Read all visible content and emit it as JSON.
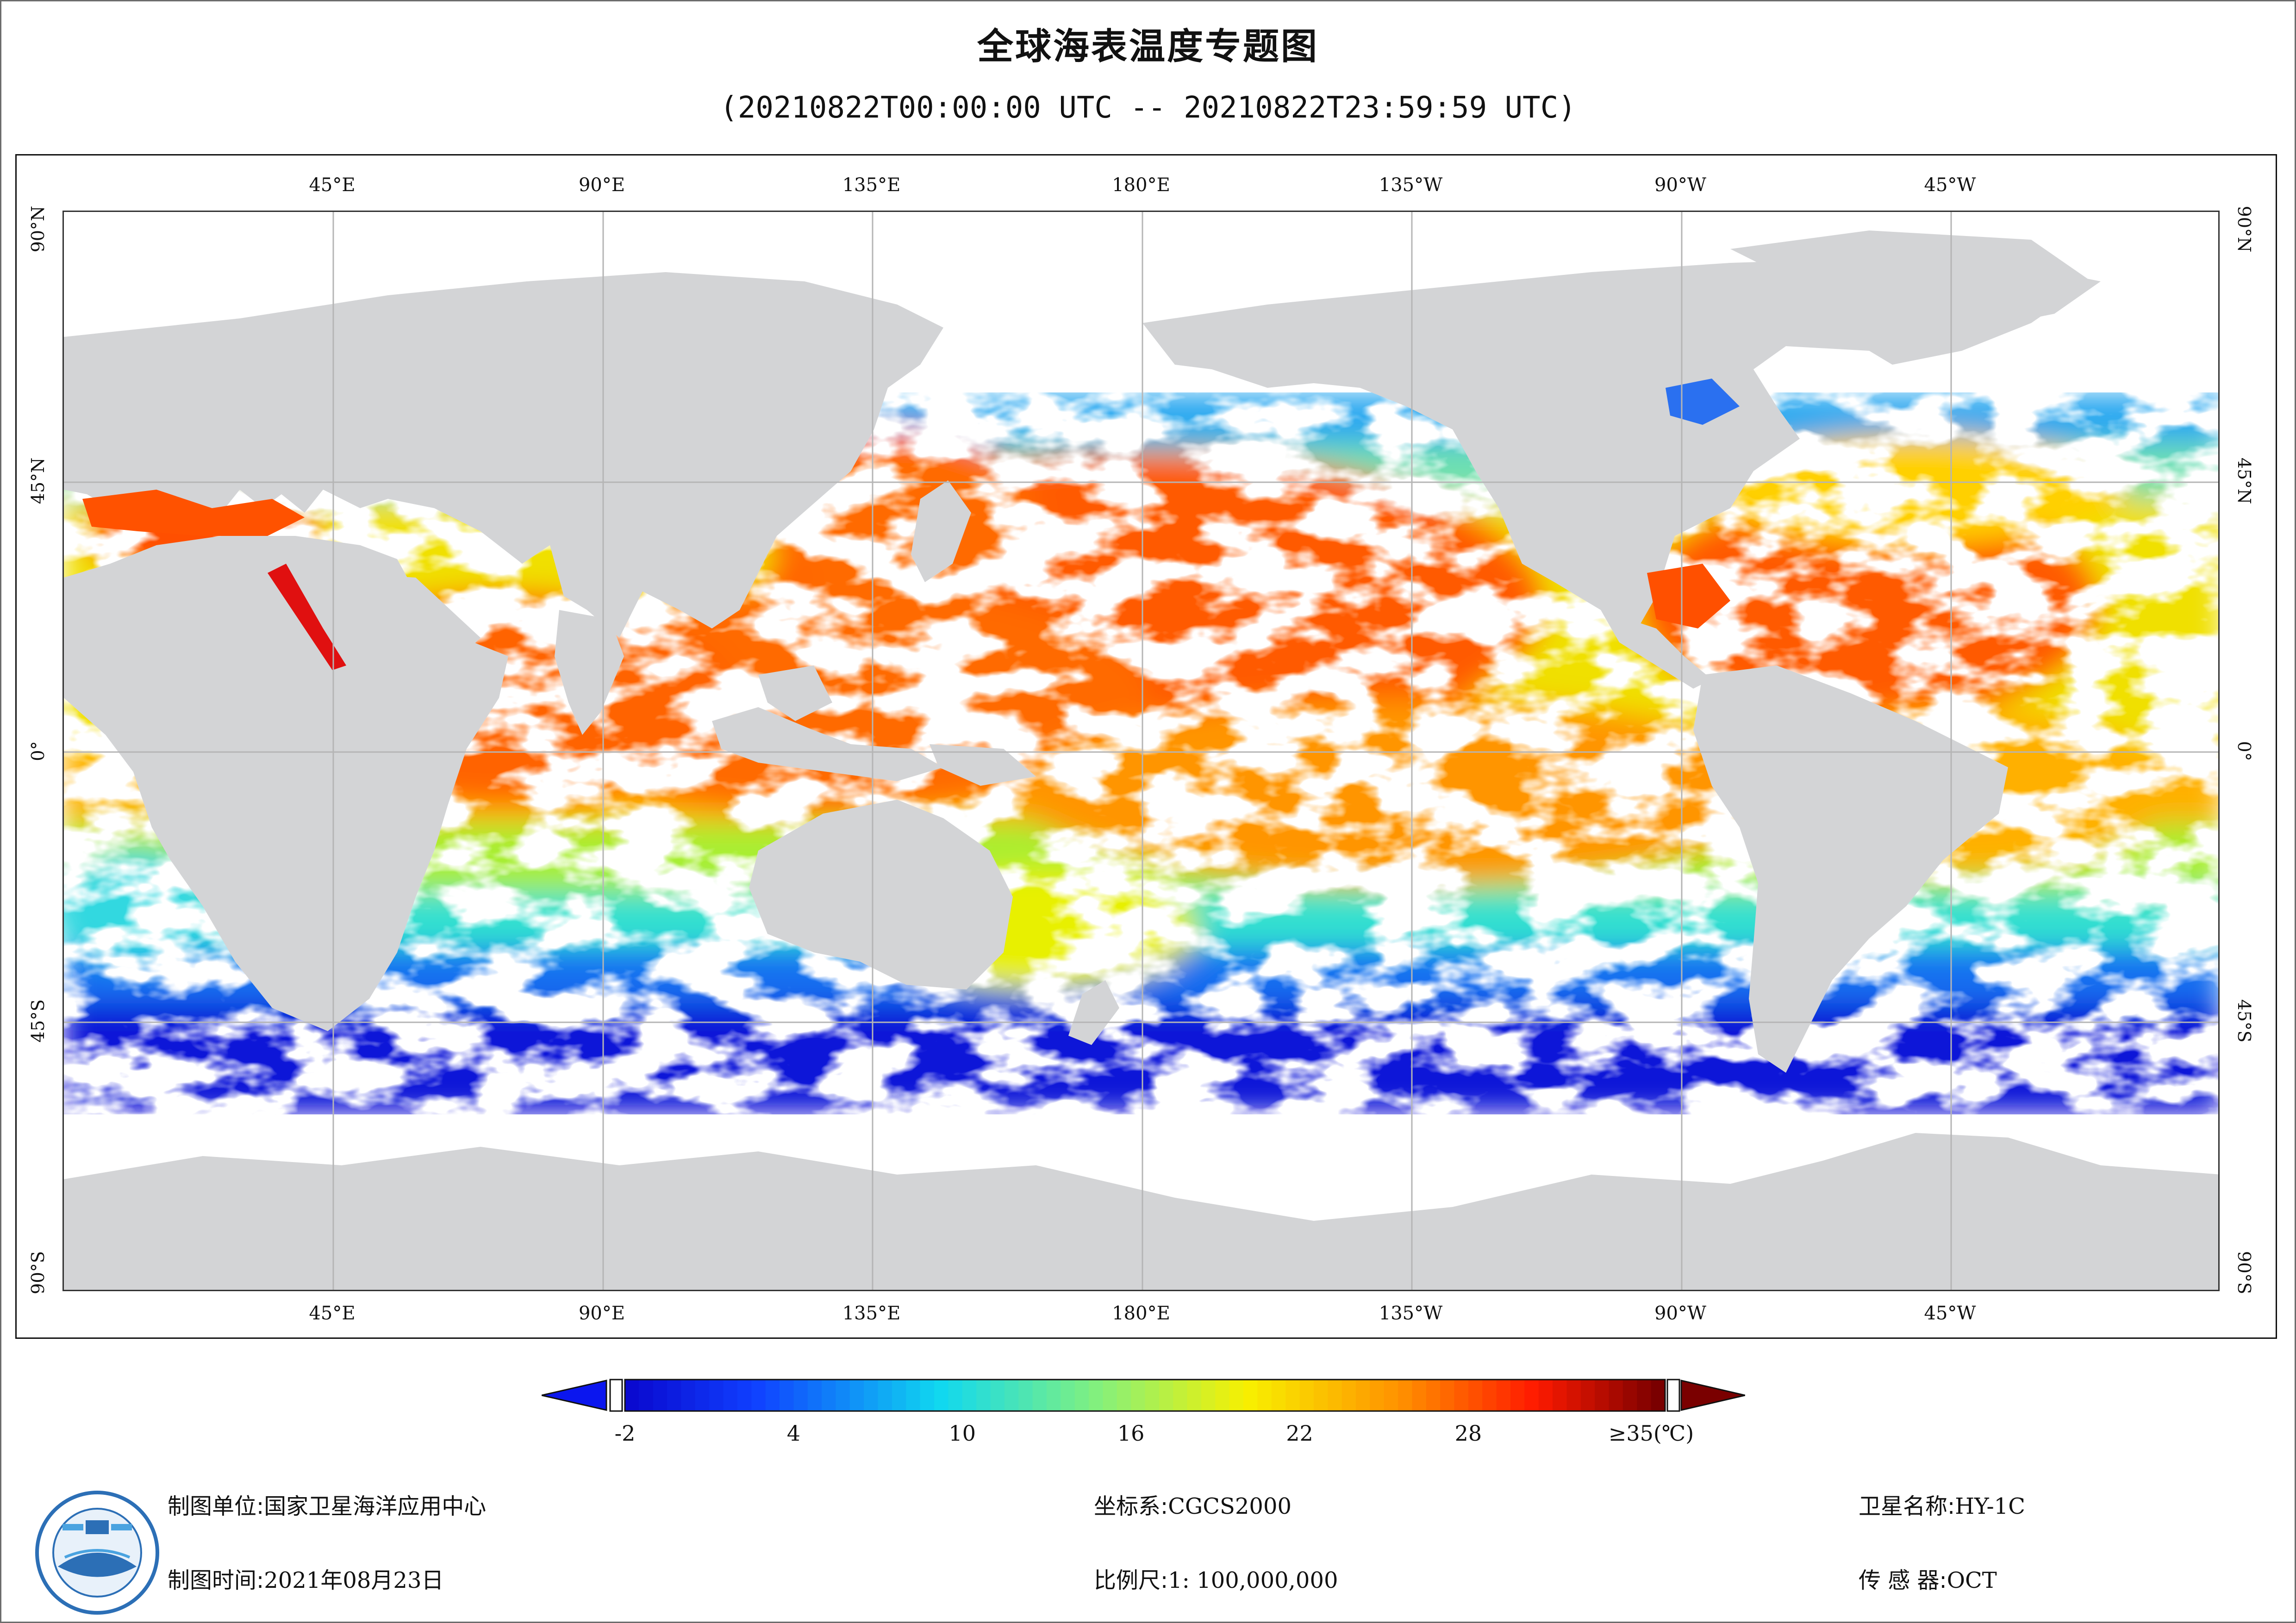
{
  "header": {
    "title": "全球海表温度专题图",
    "subtitle": "(20210822T00:00:00 UTC -- 20210822T23:59:59 UTC)"
  },
  "map": {
    "top_lon_labels": [
      "45°E",
      "90°E",
      "135°E",
      "180°E",
      "135°W",
      "90°W",
      "45°W"
    ],
    "bottom_lon_labels": [
      "45°E",
      "90°E",
      "135°E",
      "180°E",
      "135°W",
      "90°W",
      "45°W"
    ],
    "left_lat_labels": [
      "90°N",
      "45°N",
      "0°",
      "45°S",
      "90°S"
    ],
    "right_lat_labels": [
      "90°N",
      "45°N",
      "0°",
      "45°S",
      "90°S"
    ],
    "colors": {
      "land": "#d3d4d6",
      "cloud": "#ffffff",
      "grid": "#b5b5b5"
    }
  },
  "colorbar": {
    "ticks": [
      "-2",
      "4",
      "10",
      "16",
      "22",
      "28",
      "≥35(℃)"
    ],
    "tick_values": [
      -2,
      4,
      10,
      16,
      22,
      28,
      35
    ],
    "range": [
      -2,
      35
    ],
    "low_arrow_color": "#0b16ef",
    "high_arrow_color": "#7a0000"
  },
  "footer": {
    "unit_label": "制图单位:",
    "unit_value": "国家卫星海洋应用中心",
    "time_label": "制图时间:",
    "time_value": "2021年08月23日",
    "crs_label": "坐标系:",
    "crs_value": "CGCS2000",
    "scale_label": "比例尺:",
    "scale_value": "1: 100,000,000",
    "satellite_label": "卫星名称:",
    "satellite_value": "HY-1C",
    "sensor_label": "传 感 器:",
    "sensor_value": "OCT"
  },
  "logo": {
    "icon": "nsoas-satellite-logo-icon"
  }
}
